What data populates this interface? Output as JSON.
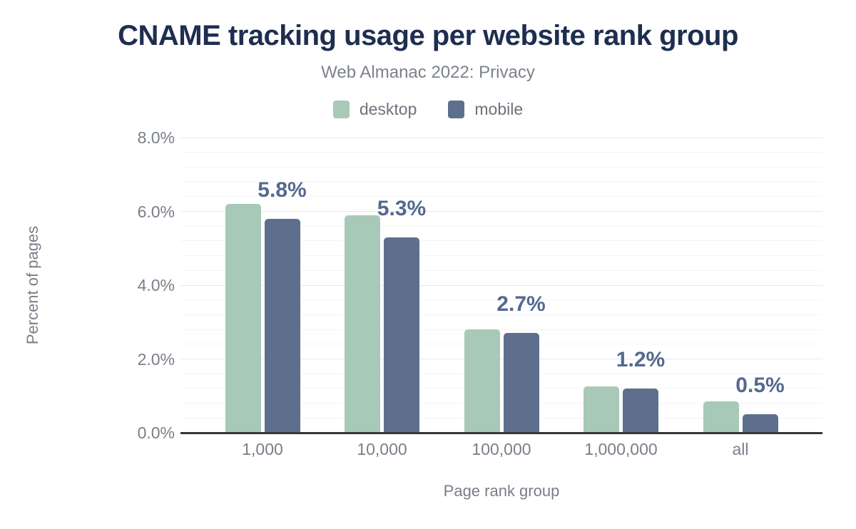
{
  "chart_data": {
    "type": "bar",
    "title": "CNAME tracking usage per website rank group",
    "subtitle": "Web Almanac 2022: Privacy",
    "categories": [
      "1,000",
      "10,000",
      "100,000",
      "1,000,000",
      "all"
    ],
    "series": [
      {
        "name": "desktop",
        "color": "#a8c9b8",
        "values": [
          6.2,
          5.9,
          2.8,
          1.25,
          0.85
        ]
      },
      {
        "name": "mobile",
        "color": "#5d6f8d",
        "values": [
          5.8,
          5.3,
          2.7,
          1.2,
          0.5
        ]
      }
    ],
    "bar_labels": {
      "labels_for_series": "mobile",
      "labels": [
        "5.8%",
        "5.3%",
        "2.7%",
        "1.2%",
        "0.5%"
      ],
      "color": "#54698e"
    },
    "xlabel": "Page rank group",
    "ylabel": "Percent of pages",
    "ylim": [
      0,
      8
    ],
    "y_ticks": [
      {
        "value": 0,
        "label": "0.0%"
      },
      {
        "value": 2,
        "label": "2.0%"
      },
      {
        "value": 4,
        "label": "4.0%"
      },
      {
        "value": 6,
        "label": "6.0%"
      },
      {
        "value": 8,
        "label": "8.0%"
      }
    ],
    "grid": {
      "on": true,
      "major_step": 2,
      "minor_step": 0.4
    },
    "legend_position": "top-center",
    "colors": {
      "title": "#1e2e50",
      "subtitle": "#7c818a",
      "axis_text": "#797e88",
      "axis_line": "#36373a",
      "grid_major": "#e8e8e8",
      "grid_minor": "#f4f4f4"
    }
  }
}
